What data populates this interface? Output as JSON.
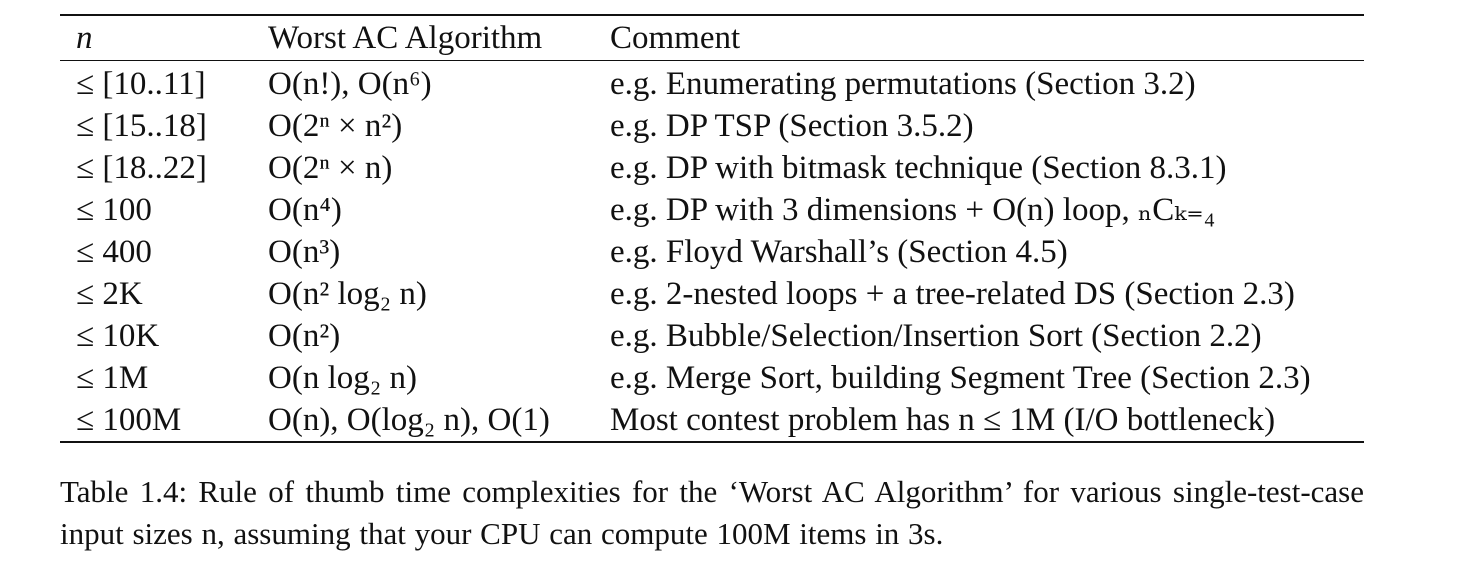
{
  "table": {
    "headers": {
      "n": "n",
      "algorithm": "Worst AC Algorithm",
      "comment": "Comment"
    },
    "rows": [
      {
        "n": "≤ [10..11]",
        "algorithm": "O(n!), O(n⁶)",
        "comment": "e.g. Enumerating permutations (Section 3.2)"
      },
      {
        "n": "≤ [15..18]",
        "algorithm": "O(2ⁿ × n²)",
        "comment": "e.g. DP TSP (Section 3.5.2)"
      },
      {
        "n": "≤ [18..22]",
        "algorithm": "O(2ⁿ × n)",
        "comment": "e.g. DP with bitmask technique (Section 8.3.1)"
      },
      {
        "n": "≤ 100",
        "algorithm": "O(n⁴)",
        "comment": "e.g. DP with 3 dimensions + O(n) loop, ₙCₖ₌₄"
      },
      {
        "n": "≤ 400",
        "algorithm": "O(n³)",
        "comment": "e.g. Floyd Warshall’s (Section 4.5)"
      },
      {
        "n": "≤ 2K",
        "algorithm": "O(n² log₂ n)",
        "comment": "e.g. 2-nested loops + a tree-related DS (Section 2.3)"
      },
      {
        "n": "≤ 10K",
        "algorithm": "O(n²)",
        "comment": "e.g. Bubble/Selection/Insertion Sort (Section 2.2)"
      },
      {
        "n": "≤ 1M",
        "algorithm": "O(n log₂ n)",
        "comment": "e.g. Merge Sort, building Segment Tree (Section 2.3)"
      },
      {
        "n": "≤ 100M",
        "algorithm": "O(n), O(log₂ n), O(1)",
        "comment": "Most contest problem has n ≤ 1M (I/O bottleneck)"
      }
    ]
  },
  "caption": "Table 1.4: Rule of thumb time complexities for the ‘Worst AC Algorithm’ for various single-test-case input sizes n, assuming that your CPU can compute 100M items in 3s."
}
